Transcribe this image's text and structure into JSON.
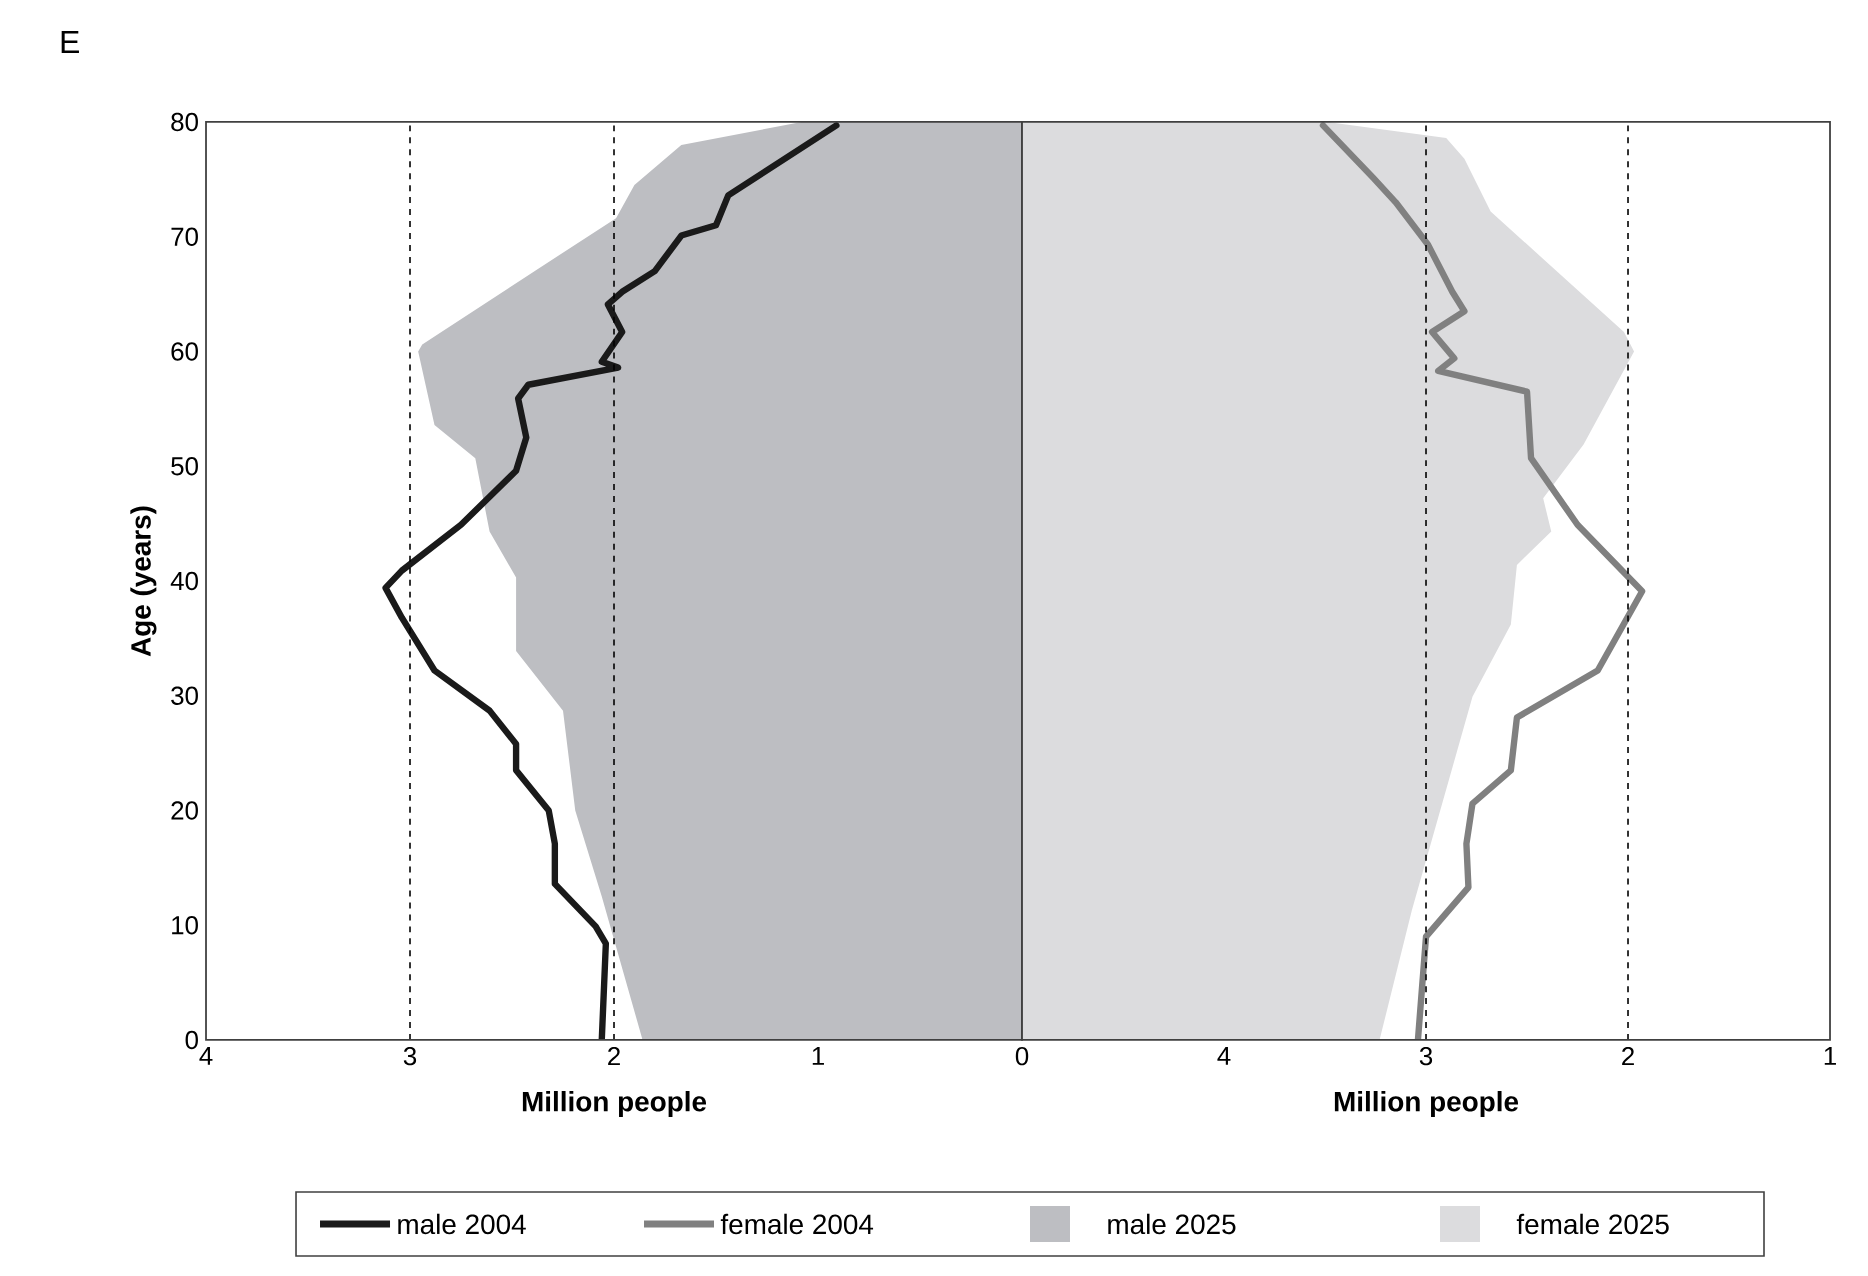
{
  "chart_data": [
    {
      "type": "line",
      "orientation": "horizontal",
      "title": "E",
      "xlabel": "Million people",
      "ylabel": "Age (years)",
      "xlim": [
        4,
        0
      ],
      "xticks": [
        4,
        3,
        2,
        1,
        0
      ],
      "ylim": [
        0,
        80
      ],
      "yticks": [
        0,
        10,
        20,
        30,
        40,
        50,
        60,
        70,
        80
      ],
      "grid": false,
      "legend": "bottom",
      "ref_lines": [
        {
          "axis": "x",
          "value": 3,
          "line_style": "dashed",
          "color": "#000000"
        },
        {
          "axis": "x",
          "value": 2,
          "line_style": "dashed",
          "color": "#000000"
        }
      ],
      "series": [
        {
          "name": "male 2025",
          "type": "area",
          "color": "#bdbec2",
          "x": [
            0,
            0,
            12.5,
            20,
            28.7,
            33.9,
            40.3,
            44.3,
            50.7,
            53.6,
            60,
            60.6,
            67,
            71.6,
            74.5,
            78,
            80,
            80
          ],
          "values": [
            0,
            1.86,
            2.06,
            2.19,
            2.25,
            2.48,
            2.48,
            2.61,
            2.68,
            2.88,
            2.96,
            2.94,
            2.39,
            1.99,
            1.9,
            1.67,
            1.08,
            0
          ]
        },
        {
          "name": "male 2004",
          "type": "line",
          "color": "#1a1a1a",
          "x": [
            0,
            8.4,
            9.9,
            13.6,
            17.1,
            20,
            23.5,
            25.8,
            28.7,
            32.2,
            36.8,
            39.4,
            40.9,
            44.9,
            49.6,
            52.5,
            55.9,
            57.1,
            58.6,
            59.1,
            61.7,
            64.1,
            65.2,
            67,
            70.1,
            71,
            73.6,
            79.7
          ],
          "values": [
            2.06,
            2.04,
            2.09,
            2.29,
            2.29,
            2.32,
            2.48,
            2.48,
            2.61,
            2.88,
            3.04,
            3.12,
            3.04,
            2.75,
            2.48,
            2.43,
            2.47,
            2.42,
            1.98,
            2.06,
            1.96,
            2.03,
            1.96,
            1.8,
            1.67,
            1.5,
            1.44,
            0.91
          ]
        }
      ]
    },
    {
      "type": "line",
      "orientation": "horizontal",
      "xlabel": "Million people",
      "xlim": [
        5,
        1
      ],
      "xticks": [
        4,
        3,
        2,
        1
      ],
      "ylim": [
        0,
        80
      ],
      "grid": false,
      "legend": "bottom",
      "tick_labels": "x",
      "ref_lines": [
        {
          "axis": "x",
          "value": 3,
          "line_style": "dashed",
          "color": "#000000"
        },
        {
          "axis": "x",
          "value": 2,
          "line_style": "dashed",
          "color": "#000000"
        }
      ],
      "series": [
        {
          "name": "female 2025",
          "type": "area",
          "color": "#dcdcde",
          "x": [
            0,
            0,
            11.3,
            29.9,
            36.2,
            41.4,
            44.3,
            47.2,
            51.9,
            60,
            61.7,
            72.2,
            76.8,
            78.6,
            80,
            80
          ],
          "values": [
            5,
            3.23,
            3.07,
            2.77,
            2.58,
            2.55,
            2.38,
            2.42,
            2.22,
            1.97,
            2.02,
            2.68,
            2.81,
            2.9,
            3.49,
            5
          ]
        },
        {
          "name": "female 2004",
          "type": "line",
          "color": "#808080",
          "x": [
            0,
            9,
            13.3,
            17.1,
            20.6,
            23.5,
            28.1,
            32.2,
            39.1,
            44.9,
            50.7,
            56.5,
            58.3,
            59.4,
            61.7,
            63.5,
            65.2,
            69.3,
            73,
            75.1,
            79.7
          ],
          "values": [
            3.04,
            3.0,
            2.79,
            2.8,
            2.77,
            2.58,
            2.55,
            2.15,
            1.93,
            2.25,
            2.48,
            2.5,
            2.94,
            2.86,
            2.97,
            2.81,
            2.87,
            2.99,
            3.15,
            3.26,
            3.51
          ]
        }
      ]
    }
  ]
}
